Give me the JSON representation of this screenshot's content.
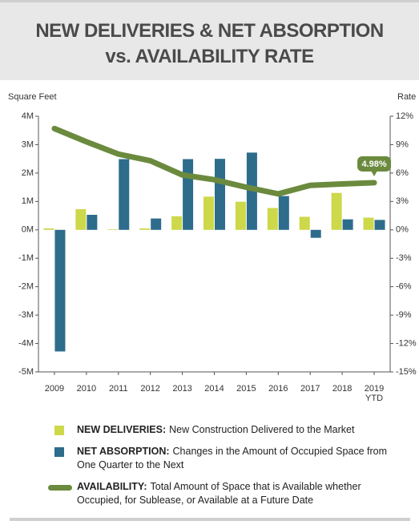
{
  "chart_data": {
    "type": "bar-line",
    "title": [
      "NEW DELIVERIES & NET ABSORPTION",
      "vs. AVAILABILITY RATE"
    ],
    "y_label": "Square Feet",
    "y2_label": "Rate",
    "categories": [
      "2009",
      "2010",
      "2011",
      "2012",
      "2013",
      "2014",
      "2015",
      "2016",
      "2017",
      "2018",
      "2019 YTD"
    ],
    "ylim": [
      -5000000,
      4000000
    ],
    "yticks": [
      {
        "value": 4000000,
        "label": "4M"
      },
      {
        "value": 3000000,
        "label": "3M"
      },
      {
        "value": 2000000,
        "label": "2M"
      },
      {
        "value": 1000000,
        "label": "1M"
      },
      {
        "value": 0,
        "label": "0M"
      },
      {
        "value": -1000000,
        "label": "-1M"
      },
      {
        "value": -2000000,
        "label": "-2M"
      },
      {
        "value": -3000000,
        "label": "-3M"
      },
      {
        "value": -4000000,
        "label": "-4M"
      },
      {
        "value": -5000000,
        "label": "-5M"
      }
    ],
    "y2lim": [
      -15,
      12
    ],
    "y2ticks": [
      {
        "value": 12,
        "label": "12%"
      },
      {
        "value": 9,
        "label": "9%"
      },
      {
        "value": 6,
        "label": "6%"
      },
      {
        "value": 3,
        "label": "3%"
      },
      {
        "value": 0,
        "label": "0%"
      },
      {
        "value": -3,
        "label": "-3%"
      },
      {
        "value": -6,
        "label": "-6%"
      },
      {
        "value": -9,
        "label": "-9%"
      },
      {
        "value": -12,
        "label": "-12%"
      },
      {
        "value": -15,
        "label": "-15%"
      }
    ],
    "series": [
      {
        "name": "NEW DELIVERIES:",
        "description": "New Construction Delivered to the Market",
        "type": "bar",
        "color": "#cdd84a",
        "values": [
          50000,
          730000,
          20000,
          50000,
          480000,
          1170000,
          990000,
          770000,
          460000,
          1300000,
          430000
        ]
      },
      {
        "name": "NET ABSORPTION:",
        "description": "Changes in the Amount of Occupied Space from One Quarter to the Next",
        "type": "bar",
        "color": "#2e6c8c",
        "values": [
          -4280000,
          530000,
          2490000,
          400000,
          2490000,
          2500000,
          2720000,
          1190000,
          -280000,
          370000,
          350000
        ]
      },
      {
        "name": "AVAILABILITY:",
        "description": "Total Amount of Space that is Available whether Occupied, for Sublease, or Available at a Future Date",
        "type": "line",
        "axis": "y2",
        "color": "#6b8a3e",
        "values": [
          10.7,
          9.3,
          8.0,
          7.3,
          5.8,
          5.3,
          4.5,
          3.8,
          4.7,
          4.85,
          4.98
        ],
        "value_labels": [
          null,
          null,
          null,
          null,
          null,
          null,
          null,
          null,
          null,
          null,
          "4.98%"
        ]
      }
    ]
  }
}
